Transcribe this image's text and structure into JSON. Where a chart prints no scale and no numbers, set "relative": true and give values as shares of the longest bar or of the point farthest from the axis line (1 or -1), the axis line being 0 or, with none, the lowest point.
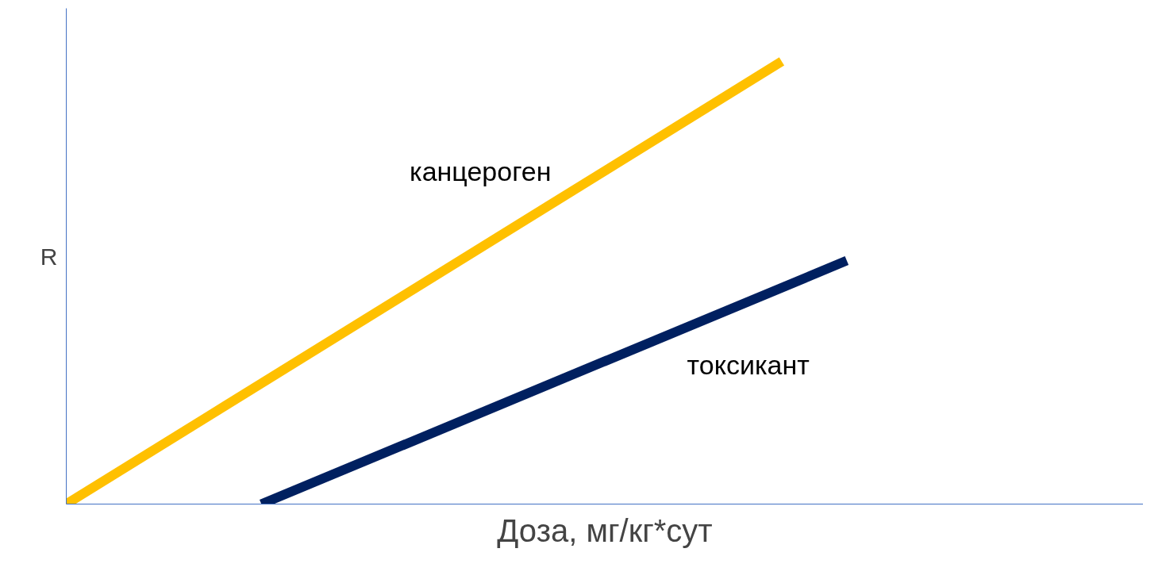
{
  "chart_data": {
    "type": "line",
    "relative": true,
    "ylabel": "R",
    "xlabel": "Доза, мг/кг*сут",
    "marker": "none",
    "categories": [
      null,
      null,
      null,
      null,
      null,
      null,
      null,
      null,
      null,
      null,
      null,
      null,
      null
    ],
    "series": [
      {
        "name": "канцероген",
        "color": "#ffc000",
        "values": [
          0,
          null,
          null,
          null,
          null,
          null,
          null,
          null,
          null,
          null,
          null,
          1,
          null
        ]
      },
      {
        "name": "токсикант",
        "color": "#002060",
        "values": [
          null,
          null,
          null,
          0,
          null,
          null,
          null,
          null,
          null,
          null,
          null,
          null,
          0.55
        ]
      }
    ]
  }
}
